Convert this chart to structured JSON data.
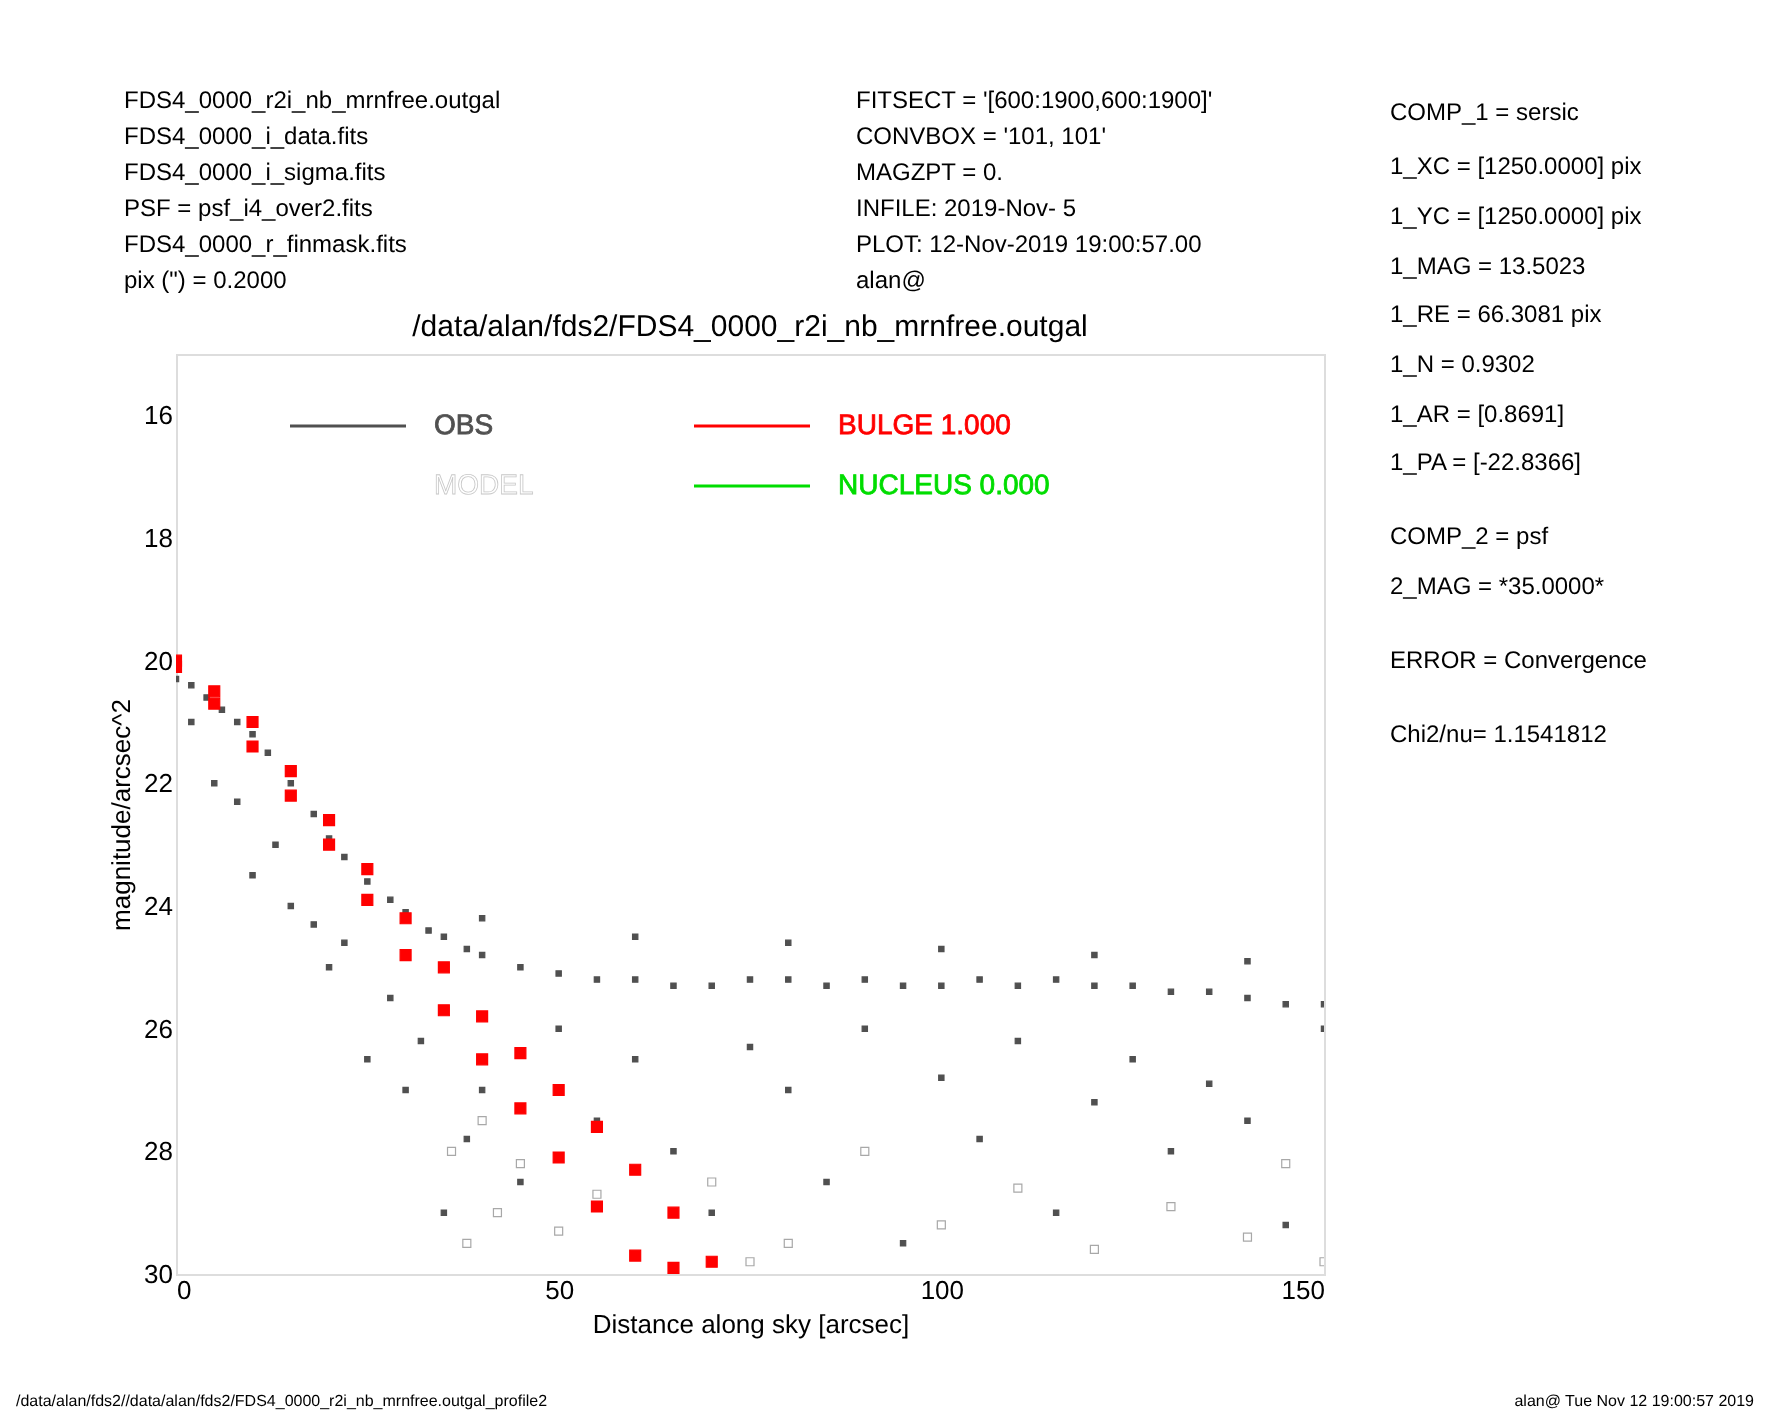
{
  "chart_data": {
    "type": "scatter",
    "title": "/data/alan/fds2/FDS4_0000_r2i_nb_mrnfree.outgal",
    "xlabel": "Distance along sky [arcsec]",
    "ylabel": "magnitude/arcsec^2",
    "xlim": [
      0,
      150
    ],
    "ylim": [
      30,
      15
    ],
    "xticks": [
      0,
      50,
      100,
      150
    ],
    "yticks": [
      16,
      18,
      20,
      22,
      24,
      26,
      28,
      30
    ],
    "grid": false,
    "legend": "top",
    "marker": "square",
    "series": [
      {
        "name": "OBS",
        "color": "#505050",
        "x": [
          0,
          2,
          4,
          6,
          8,
          10,
          12,
          15,
          18,
          20,
          22,
          25,
          28,
          30,
          33,
          35,
          38,
          40,
          45,
          50,
          55,
          60,
          65,
          70,
          75,
          80,
          85,
          90,
          95,
          100,
          105,
          110,
          115,
          120,
          125,
          130,
          135,
          140,
          145,
          150,
          2,
          5,
          8,
          10,
          13,
          15,
          18,
          20,
          22,
          25,
          28,
          30,
          32,
          35,
          38,
          40,
          45,
          50,
          55,
          60,
          65,
          70,
          75,
          80,
          85,
          90,
          95,
          100,
          105,
          110,
          115,
          120,
          125,
          130,
          135,
          140,
          145,
          150,
          40,
          60,
          80,
          100,
          120,
          140
        ],
        "values": [
          20.3,
          20.4,
          20.6,
          20.8,
          21.0,
          21.2,
          21.5,
          22.0,
          22.5,
          22.9,
          23.2,
          23.6,
          23.9,
          24.1,
          24.4,
          24.5,
          24.7,
          24.8,
          25.0,
          25.1,
          25.2,
          25.2,
          25.3,
          25.3,
          25.2,
          25.2,
          25.3,
          25.2,
          25.3,
          25.3,
          25.2,
          25.3,
          25.2,
          25.3,
          25.3,
          25.4,
          25.4,
          25.5,
          25.6,
          25.6,
          21.0,
          22.0,
          22.3,
          23.5,
          23.0,
          24.0,
          24.3,
          25.0,
          24.6,
          26.5,
          25.5,
          27.0,
          26.2,
          29.0,
          27.8,
          27.0,
          28.5,
          26.0,
          27.5,
          26.5,
          28.0,
          29.0,
          26.3,
          27.0,
          28.5,
          26.0,
          29.5,
          26.8,
          27.8,
          26.2,
          29.0,
          27.2,
          26.5,
          28.0,
          26.9,
          27.5,
          29.2,
          26.0,
          24.2,
          24.5,
          24.6,
          24.7,
          24.8,
          24.9
        ]
      },
      {
        "name": "MODEL",
        "color": "#ffffff",
        "x": [
          36,
          38,
          40,
          42,
          45,
          50,
          55,
          75,
          70,
          80,
          90,
          100,
          110,
          120,
          130,
          140,
          145,
          150
        ],
        "values": [
          28.0,
          29.5,
          27.5,
          29.0,
          28.2,
          29.3,
          28.7,
          29.8,
          28.5,
          29.5,
          28.0,
          29.2,
          28.6,
          29.6,
          28.9,
          29.4,
          28.2,
          29.8
        ]
      },
      {
        "name": "BULGE  1.000",
        "color": "#ff0000",
        "x": [
          0,
          5,
          10,
          15,
          20,
          25,
          30,
          35,
          40,
          45,
          50,
          55,
          60,
          65,
          70,
          0,
          5,
          10,
          15,
          20,
          25,
          30,
          35,
          40,
          45,
          50,
          55,
          60,
          65
        ],
        "values": [
          20.0,
          20.5,
          21.0,
          21.8,
          22.6,
          23.4,
          24.2,
          25.0,
          25.8,
          26.4,
          27.0,
          27.6,
          28.3,
          29.0,
          29.8,
          20.1,
          20.7,
          21.4,
          22.2,
          23.0,
          23.9,
          24.8,
          25.7,
          26.5,
          27.3,
          28.1,
          28.9,
          29.7,
          29.9
        ]
      },
      {
        "name": "NUCLEUS  0.000",
        "color": "#00dd00"
      }
    ],
    "annotations": [
      "FDS4_0000_r2i_nb_mrnfree.outgal",
      "FDS4_0000_i_data.fits",
      "FDS4_0000_i_sigma.fits",
      "PSF      = psf_i4_over2.fits",
      "FDS4_0000_r_finmask.fits",
      "pix (\") =  0.2000",
      "FITSECT = '[600:1900,600:1900]'",
      "CONVBOX = '101, 101'",
      "MAGZPT  =                 0.",
      "INFILE: 2019-Nov- 5",
      "PLOT: 12-Nov-2019 19:00:57.00",
      "alan@",
      "COMP_1  = sersic",
      "1_XC    = [1250.0000] pix",
      "1_YC    = [1250.0000] pix",
      "1_MAG   = 13.5023",
      "1_RE    = 66.3081 pix",
      "1_N     = 0.9302",
      "1_AR    = [0.8691]",
      "1_PA    = [-22.8366]",
      "COMP_2  = psf",
      "2_MAG   = *35.0000*",
      "ERROR   = Convergence",
      "Chi2/nu=      1.1541812",
      "/data/alan/fds2//data/alan/fds2/FDS4_0000_r2i_nb_mrnfree.outgal_profile2",
      "alan@  Tue Nov 12 19:00:57 2019"
    ]
  }
}
